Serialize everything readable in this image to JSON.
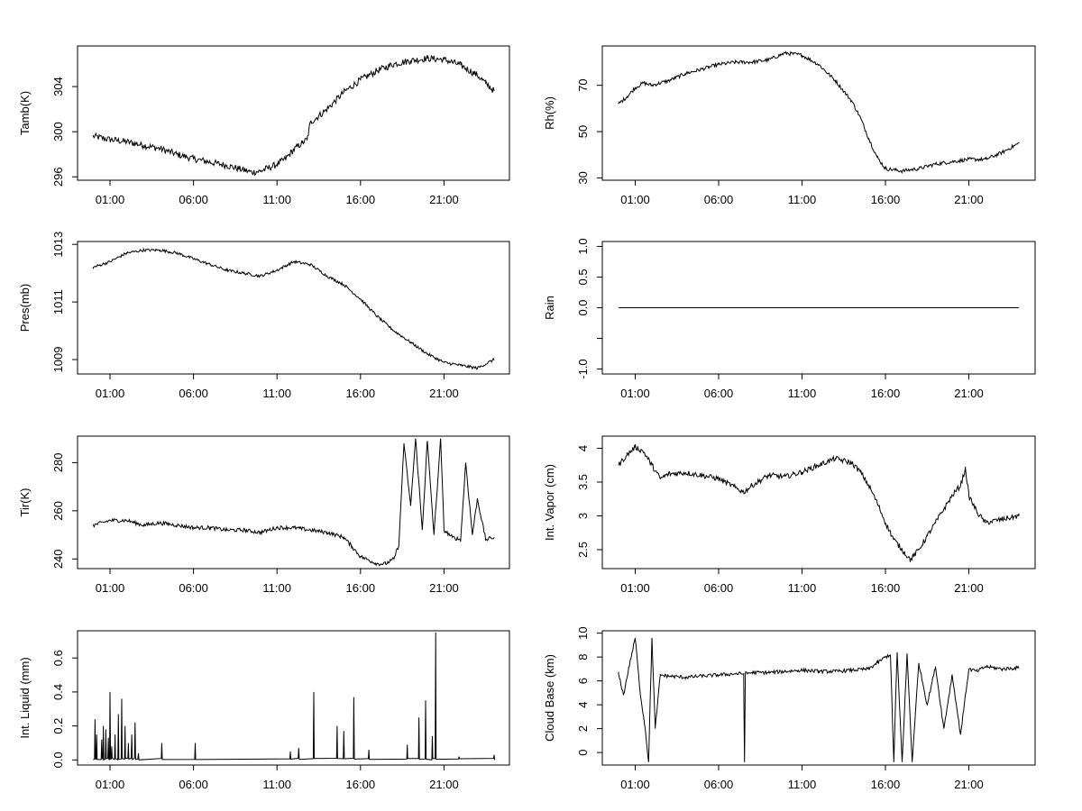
{
  "chart_data": [
    {
      "type": "line",
      "ylabel": "Tamb(K)",
      "x_ticks": [
        "01:00",
        "06:00",
        "11:00",
        "16:00",
        "21:00"
      ],
      "x_tick_hours": [
        1,
        6,
        11,
        16,
        21
      ],
      "x_range": [
        0,
        24
      ],
      "yticks": [
        296,
        300,
        304
      ],
      "ylim": [
        295.7,
        307.6
      ],
      "noise": 0.3,
      "series": [
        {
          "x": [
            0,
            1,
            2,
            3,
            4,
            5,
            6,
            7,
            8,
            9,
            9.5,
            10,
            11,
            11.5,
            12,
            12.5,
            12.8,
            13,
            13.5,
            14,
            15,
            16,
            17,
            18,
            19,
            20,
            21,
            22,
            23,
            23.5,
            24
          ],
          "y": [
            299.6,
            299.3,
            299.1,
            298.8,
            298.5,
            298.0,
            297.6,
            297.3,
            297.0,
            296.6,
            296.4,
            296.5,
            297.1,
            297.6,
            298.4,
            299.0,
            299.3,
            300.8,
            301.4,
            302.0,
            303.5,
            304.6,
            305.4,
            306.0,
            306.3,
            306.5,
            306.4,
            305.9,
            305.0,
            304.3,
            303.6
          ]
        }
      ]
    },
    {
      "type": "line",
      "ylabel": "Rh(%)",
      "x_ticks": [
        "01:00",
        "06:00",
        "11:00",
        "16:00",
        "21:00"
      ],
      "x_tick_hours": [
        1,
        6,
        11,
        16,
        21
      ],
      "x_range": [
        0,
        24
      ],
      "yticks": [
        30,
        50,
        70
      ],
      "ylim": [
        29,
        87
      ],
      "noise": 0.8,
      "series": [
        {
          "x": [
            0,
            0.5,
            1,
            1.5,
            2,
            3,
            4,
            5,
            6,
            7,
            8,
            9,
            10,
            11,
            12,
            13,
            14,
            14.5,
            15,
            15.5,
            16,
            17,
            18,
            19,
            20,
            21,
            22,
            23,
            24
          ],
          "y": [
            62,
            65,
            69,
            71,
            70,
            72,
            75,
            77,
            79,
            80,
            80,
            81,
            84,
            83,
            79,
            72,
            63,
            56,
            47,
            39,
            34,
            33,
            34,
            36,
            37,
            38,
            38,
            41,
            45
          ]
        }
      ]
    },
    {
      "type": "line",
      "ylabel": "Pres(mb)",
      "x_ticks": [
        "01:00",
        "06:00",
        "11:00",
        "16:00",
        "21:00"
      ],
      "x_tick_hours": [
        1,
        6,
        11,
        16,
        21
      ],
      "x_range": [
        0,
        24
      ],
      "yticks": [
        1009,
        1011,
        1013
      ],
      "ylim": [
        1008.5,
        1013.1
      ],
      "noise": 0.05,
      "series": [
        {
          "x": [
            0,
            1,
            2,
            3,
            4,
            5,
            6,
            7,
            8,
            9,
            10,
            11,
            12,
            13,
            14,
            15,
            16,
            17,
            18,
            19,
            20,
            21,
            22,
            23,
            24
          ],
          "y": [
            1012.2,
            1012.4,
            1012.7,
            1012.8,
            1012.8,
            1012.7,
            1012.5,
            1012.3,
            1012.1,
            1012.0,
            1011.9,
            1012.1,
            1012.4,
            1012.3,
            1011.9,
            1011.6,
            1011.1,
            1010.5,
            1010.0,
            1009.6,
            1009.2,
            1008.9,
            1008.8,
            1008.7,
            1009.0
          ]
        }
      ]
    },
    {
      "type": "line",
      "ylabel": "Rain",
      "x_ticks": [
        "01:00",
        "06:00",
        "11:00",
        "16:00",
        "21:00"
      ],
      "x_tick_hours": [
        1,
        6,
        11,
        16,
        21
      ],
      "x_range": [
        0,
        24
      ],
      "yticks": [
        -1.0,
        -0.5,
        0.0,
        0.5,
        1.0
      ],
      "ytick_labels": [
        "-1.0",
        "",
        "0.0",
        "0.5",
        "1.0"
      ],
      "ylim": [
        -1.08,
        1.08
      ],
      "noise": 0,
      "series": [
        {
          "x": [
            0,
            24
          ],
          "y": [
            0,
            0
          ]
        }
      ]
    },
    {
      "type": "line",
      "ylabel": "Tir(K)",
      "x_ticks": [
        "01:00",
        "06:00",
        "11:00",
        "16:00",
        "21:00"
      ],
      "x_tick_hours": [
        1,
        6,
        11,
        16,
        21
      ],
      "x_range": [
        0,
        24
      ],
      "yticks": [
        240,
        260,
        280
      ],
      "ylim": [
        236,
        291
      ],
      "noise": 0.8,
      "series": [
        {
          "x": [
            0,
            1,
            2,
            3,
            4,
            5,
            6,
            7,
            8,
            9,
            10,
            11,
            12,
            13,
            14,
            15,
            15.5,
            16,
            17,
            17.5,
            18,
            18.3,
            18.6,
            19,
            19.3,
            19.7,
            20,
            20.4,
            20.8,
            21,
            21.5,
            22,
            22.3,
            22.7,
            23,
            23.5,
            24
          ],
          "y": [
            254,
            256,
            256,
            254,
            255,
            254,
            253,
            253,
            252,
            252,
            251,
            253,
            253,
            252,
            251,
            249,
            245,
            241,
            238,
            238,
            240,
            246,
            288,
            262,
            290,
            252,
            289,
            250,
            290,
            252,
            249,
            248,
            280,
            250,
            265,
            248,
            249
          ]
        }
      ]
    },
    {
      "type": "line",
      "ylabel": "Int. Vapor (cm)",
      "x_ticks": [
        "01:00",
        "06:00",
        "11:00",
        "16:00",
        "21:00"
      ],
      "x_tick_hours": [
        1,
        6,
        11,
        16,
        21
      ],
      "x_range": [
        0,
        24
      ],
      "yticks": [
        2.5,
        3.0,
        3.5,
        4.0
      ],
      "ylim": [
        2.22,
        4.18
      ],
      "noise": 0.04,
      "series": [
        {
          "x": [
            0,
            0.5,
            1,
            1.5,
            2,
            2.5,
            3,
            4,
            5,
            6,
            7,
            7.5,
            8,
            9,
            10,
            11,
            12,
            13,
            14,
            14.5,
            15,
            15.5,
            16,
            16.5,
            17,
            17.5,
            18,
            18.5,
            19,
            19.5,
            20,
            20.5,
            20.8,
            21,
            21.5,
            22,
            23,
            24
          ],
          "y": [
            3.75,
            3.9,
            4.02,
            3.95,
            3.75,
            3.55,
            3.62,
            3.64,
            3.6,
            3.55,
            3.42,
            3.35,
            3.45,
            3.6,
            3.58,
            3.65,
            3.75,
            3.85,
            3.78,
            3.65,
            3.45,
            3.2,
            2.9,
            2.65,
            2.5,
            2.35,
            2.5,
            2.7,
            2.9,
            3.1,
            3.3,
            3.45,
            3.7,
            3.3,
            3.05,
            2.9,
            2.95,
            3.0
          ]
        }
      ]
    },
    {
      "type": "line",
      "ylabel": "Int. Liquid (mm)",
      "x_ticks": [
        "01:00",
        "06:00",
        "11:00",
        "16:00",
        "21:00"
      ],
      "x_tick_hours": [
        1,
        6,
        11,
        16,
        21
      ],
      "x_range": [
        0,
        24
      ],
      "yticks": [
        0.0,
        0.2,
        0.4,
        0.6
      ],
      "ytick_labels": [
        "0.0",
        "0.2",
        "0.4",
        "0.6"
      ],
      "ylim": [
        -0.03,
        0.76
      ],
      "noise": 0,
      "baseline": 0.0,
      "spikes": [
        [
          0.1,
          0.24
        ],
        [
          0.2,
          0.15
        ],
        [
          0.5,
          0.12
        ],
        [
          0.6,
          0.2
        ],
        [
          0.75,
          0.18
        ],
        [
          0.9,
          0.13
        ],
        [
          1.0,
          0.4
        ],
        [
          1.1,
          0.08
        ],
        [
          1.3,
          0.15
        ],
        [
          1.5,
          0.27
        ],
        [
          1.7,
          0.36
        ],
        [
          1.9,
          0.2
        ],
        [
          2.1,
          0.1
        ],
        [
          2.3,
          0.15
        ],
        [
          2.5,
          0.22
        ],
        [
          2.7,
          0.04
        ],
        [
          4.1,
          0.1
        ],
        [
          6.1,
          0.1
        ],
        [
          11.8,
          0.05
        ],
        [
          12.3,
          0.07
        ],
        [
          13.2,
          0.4
        ],
        [
          14.6,
          0.2
        ],
        [
          15.0,
          0.17
        ],
        [
          15.6,
          0.37
        ],
        [
          16.5,
          0.06
        ],
        [
          18.8,
          0.09
        ],
        [
          19.5,
          0.25
        ],
        [
          19.9,
          0.35
        ],
        [
          20.3,
          0.14
        ],
        [
          20.5,
          0.75
        ],
        [
          21.9,
          0.02
        ],
        [
          24.0,
          0.03
        ]
      ]
    },
    {
      "type": "line",
      "ylabel": "Cloud Base (km)",
      "x_ticks": [
        "01:00",
        "06:00",
        "11:00",
        "16:00",
        "21:00"
      ],
      "x_tick_hours": [
        1,
        6,
        11,
        16,
        21
      ],
      "x_range": [
        0,
        24
      ],
      "yticks": [
        0,
        2,
        4,
        6,
        8,
        10
      ],
      "ylim": [
        -1.05,
        10.2
      ],
      "noise": 0.15,
      "series": [
        {
          "x": [
            0,
            0.3,
            0.6,
            1,
            1.3,
            1.6,
            1.8,
            2,
            2.2,
            2.5,
            3,
            4,
            5,
            6,
            7,
            7.5,
            7.55,
            7.6,
            8,
            9,
            10,
            11,
            12,
            13,
            14,
            15,
            15.5,
            16,
            16.3,
            16.5,
            16.7,
            17,
            17.3,
            17.6,
            18,
            18.5,
            19,
            19.5,
            20,
            20.5,
            21,
            21.5,
            22,
            23,
            24
          ],
          "y": [
            6.6,
            4.8,
            7.0,
            9.6,
            5.0,
            2.0,
            -0.8,
            9.6,
            2.0,
            6.5,
            6.4,
            6.3,
            6.4,
            6.5,
            6.6,
            6.6,
            -0.8,
            6.6,
            6.7,
            6.7,
            6.8,
            6.9,
            6.8,
            6.8,
            6.9,
            7.0,
            7.5,
            8.0,
            8.2,
            -0.8,
            8.4,
            -0.8,
            8.3,
            -0.8,
            7.5,
            4.0,
            7.2,
            2.0,
            6.5,
            1.5,
            7.0,
            6.8,
            7.2,
            7.0,
            7.1
          ]
        }
      ]
    }
  ]
}
